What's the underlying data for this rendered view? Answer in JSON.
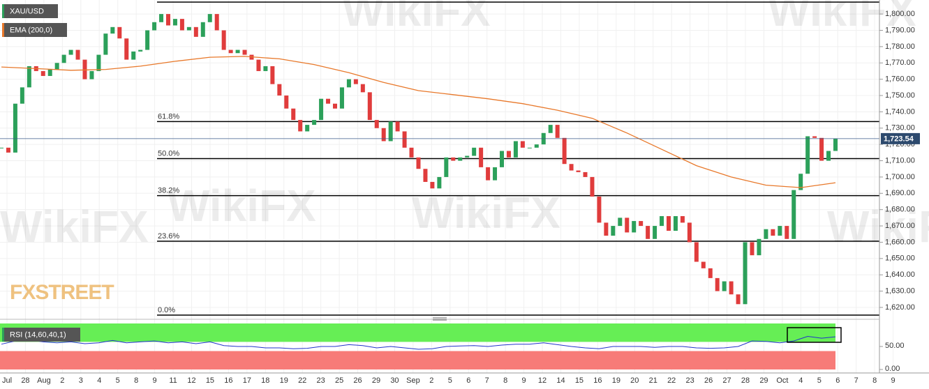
{
  "chart_data": {
    "type": "candlestick",
    "symbol": "XAU/USD",
    "indicator": "EMA (200,0)",
    "up_color": "#2ca05a",
    "down_color": "#e03c3c",
    "ema_color": "#e8782a",
    "close": [
      1718,
      1715,
      1745,
      1755,
      1768,
      1765,
      1762,
      1766,
      1770,
      1775,
      1778,
      1772,
      1760,
      1765,
      1775,
      1788,
      1792,
      1785,
      1772,
      1777,
      1778,
      1790,
      1795,
      1800,
      1793,
      1797,
      1790,
      1792,
      1786,
      1795,
      1800,
      1790,
      1778,
      1776,
      1778,
      1775,
      1772,
      1765,
      1768,
      1757,
      1750,
      1742,
      1735,
      1728,
      1732,
      1735,
      1748,
      1745,
      1742,
      1755,
      1760,
      1757,
      1752,
      1735,
      1730,
      1722,
      1734,
      1728,
      1718,
      1712,
      1705,
      1697,
      1693,
      1700,
      1712,
      1710,
      1712,
      1713,
      1718,
      1706,
      1698,
      1706,
      1716,
      1712,
      1722,
      1718,
      1718,
      1720,
      1727,
      1732,
      1724,
      1708,
      1704,
      1703,
      1700,
      1688,
      1672,
      1664,
      1670,
      1675,
      1666,
      1673,
      1670,
      1662,
      1670,
      1676,
      1667,
      1676,
      1672,
      1660,
      1648,
      1644,
      1638,
      1630,
      1636,
      1628,
      1622,
      1660,
      1652,
      1662,
      1668,
      1664,
      1670,
      1662,
      1692,
      1702,
      1725,
      1724,
      1710,
      1716,
      1723.54
    ],
    "ema": [
      1767.5,
      1766.5,
      1765.5,
      1766,
      1768,
      1771,
      1773.5,
      1774,
      1772.5,
      1769,
      1764,
      1758,
      1753,
      1750.5,
      1748,
      1745,
      1741,
      1736,
      1727,
      1717,
      1707,
      1700,
      1695,
      1693.5,
      1696.5
    ],
    "ylim": [
      1614,
      1808.6
    ],
    "yticks": [
      {
        "value": 1620,
        "label": "1,620.00"
      },
      {
        "value": 1630,
        "label": "1,630.00"
      },
      {
        "value": 1640,
        "label": "1,640.00"
      },
      {
        "value": 1650,
        "label": "1,650.00"
      },
      {
        "value": 1660,
        "label": "1,660.00"
      },
      {
        "value": 1670,
        "label": "1,670.00"
      },
      {
        "value": 1680,
        "label": "1,680.00"
      },
      {
        "value": 1690,
        "label": "1,690.00"
      },
      {
        "value": 1700,
        "label": "1,700.00"
      },
      {
        "value": 1710,
        "label": "1,710.00"
      },
      {
        "value": 1720,
        "label": "1,720.00"
      },
      {
        "value": 1730,
        "label": "1,730.00"
      },
      {
        "value": 1740,
        "label": "1,740.00"
      },
      {
        "value": 1750,
        "label": "1,750.00"
      },
      {
        "value": 1760,
        "label": "1,760.00"
      },
      {
        "value": 1770,
        "label": "1,770.00"
      },
      {
        "value": 1780,
        "label": "1,780.00"
      },
      {
        "value": 1790,
        "label": "1,790.00"
      },
      {
        "value": 1800,
        "label": "1,800.00"
      }
    ],
    "last_price": {
      "value": 1723.54,
      "label": "1,723.54"
    },
    "top_line": 1807.3,
    "fib": [
      {
        "label": "61.8%",
        "value": 1734.0
      },
      {
        "label": "50.0%",
        "value": 1711.3
      },
      {
        "label": "38.2%",
        "value": 1688.6
      },
      {
        "label": "23.6%",
        "value": 1660.6
      },
      {
        "label": "0.0%",
        "value": 1615.3
      }
    ],
    "categories": [
      "Jul",
      "28",
      "Aug",
      "2",
      "3",
      "4",
      "5",
      "8",
      "9",
      "11",
      "12",
      "15",
      "16",
      "17",
      "18",
      "19",
      "22",
      "23",
      "25",
      "26",
      "29",
      "30",
      "Sep",
      "2",
      "5",
      "6",
      "7",
      "8",
      "9",
      "12",
      "14",
      "15",
      "16",
      "19",
      "20",
      "21",
      "22",
      "23",
      "26",
      "27",
      "28",
      "29",
      "Oct",
      "4",
      "5",
      "6",
      "7",
      "8",
      "9"
    ],
    "rsi": {
      "name": "RSI (14,60,40,1)",
      "color": "#2233cc",
      "values": [
        55,
        62,
        64,
        60,
        58,
        60,
        56,
        58,
        63,
        58,
        60,
        62,
        58,
        60,
        56,
        60,
        52,
        50,
        50,
        47,
        47,
        45,
        46,
        50,
        50,
        54,
        52,
        47,
        50,
        47,
        44,
        45,
        50,
        51,
        52,
        50,
        53,
        55,
        55,
        58,
        54,
        50,
        47,
        45,
        50,
        50,
        50,
        48,
        50,
        50,
        47,
        46,
        47,
        50,
        62,
        61,
        58,
        62,
        72,
        68,
        71
      ],
      "ylim": [
        0,
        100
      ],
      "upper": 60,
      "lower": 40,
      "yticks": [
        {
          "value": 50,
          "label": "50.00"
        },
        {
          "value": 0,
          "label": "0.00"
        }
      ]
    },
    "watermark": "WikiFX",
    "logo": "FXSTREET"
  }
}
